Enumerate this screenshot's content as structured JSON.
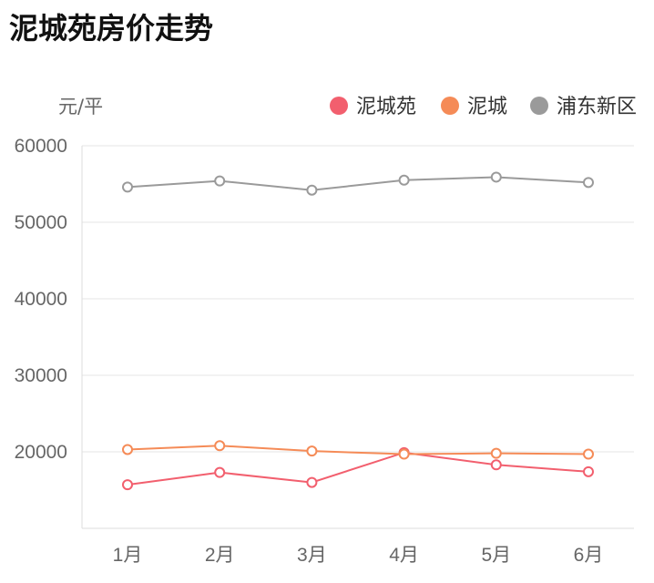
{
  "title": "泥城苑房价走势",
  "chart_data": {
    "type": "line",
    "title": "泥城苑房价走势",
    "ylabel": "元/平",
    "xlabel": "",
    "categories": [
      "1月",
      "2月",
      "3月",
      "4月",
      "5月",
      "6月"
    ],
    "ylim": [
      0,
      60000
    ],
    "yticks": [
      20000,
      30000,
      40000,
      50000,
      60000
    ],
    "grid": true,
    "legend_position": "top-right",
    "series": [
      {
        "name": "泥城苑",
        "color": "#f25f6e",
        "values": [
          15700,
          17300,
          16000,
          19900,
          18300,
          17400
        ]
      },
      {
        "name": "泥城",
        "color": "#f58b57",
        "values": [
          20300,
          20800,
          20100,
          19700,
          19800,
          19700
        ]
      },
      {
        "name": "浦东新区",
        "color": "#9a9a9a",
        "values": [
          54600,
          55400,
          54200,
          55500,
          55900,
          55200
        ]
      }
    ]
  }
}
